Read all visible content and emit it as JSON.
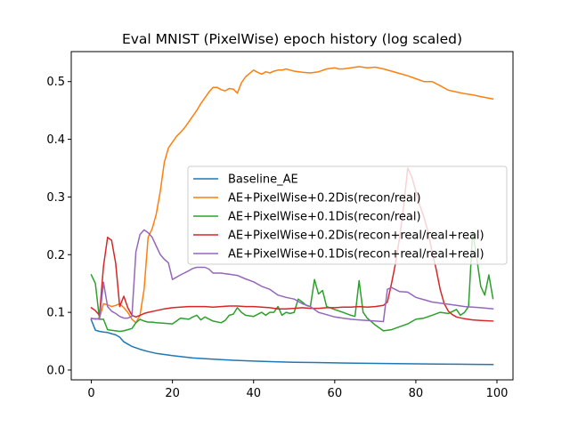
{
  "chart_data": {
    "type": "line",
    "title": "Eval MNIST (PixelWise) epoch history (log scaled)",
    "xlabel": "",
    "ylabel": "",
    "xlim": [
      -4.95,
      103.95
    ],
    "ylim": [
      -0.017,
      0.552
    ],
    "xticks": [
      0,
      20,
      40,
      60,
      80,
      100
    ],
    "yticks": [
      0.0,
      0.1,
      0.2,
      0.3,
      0.4,
      0.5
    ],
    "ytick_labels": [
      "0.0",
      "0.1",
      "0.2",
      "0.3",
      "0.4",
      "0.5"
    ],
    "legend_position": "center-right",
    "series": [
      {
        "name": "Baseline_AE",
        "color": "#1f77b4",
        "x": [
          0,
          1,
          2,
          3,
          4,
          5,
          6,
          7,
          8,
          9,
          10,
          12,
          14,
          16,
          18,
          20,
          25,
          30,
          35,
          40,
          45,
          50,
          55,
          60,
          65,
          70,
          75,
          80,
          85,
          90,
          95,
          99
        ],
        "y": [
          0.087,
          0.069,
          0.067,
          0.066,
          0.065,
          0.063,
          0.061,
          0.057,
          0.049,
          0.045,
          0.041,
          0.036,
          0.032,
          0.029,
          0.027,
          0.025,
          0.021,
          0.019,
          0.017,
          0.0155,
          0.0145,
          0.0135,
          0.013,
          0.0125,
          0.012,
          0.0115,
          0.011,
          0.0108,
          0.0105,
          0.0102,
          0.0099,
          0.0097
        ]
      },
      {
        "name": "AE+PixelWise+0.2Dis(recon/real)",
        "color": "#ff7f0e",
        "x": [
          0,
          1,
          2,
          3,
          4,
          5,
          6,
          7,
          8,
          9,
          10,
          11,
          12,
          13,
          14,
          15,
          16,
          17,
          18,
          19,
          20,
          21,
          22,
          23,
          24,
          25,
          26,
          27,
          28,
          29,
          30,
          31,
          32,
          33,
          34,
          35,
          36,
          37,
          38,
          39,
          40,
          41,
          42,
          43,
          44,
          45,
          46,
          47,
          48,
          49,
          50,
          52,
          54,
          56,
          58,
          60,
          61,
          62,
          64,
          66,
          68,
          70,
          72,
          74,
          76,
          78,
          80,
          82,
          84,
          86,
          88,
          90,
          92,
          94,
          96,
          99
        ],
        "y": [
          0.09,
          0.088,
          0.09,
          0.115,
          0.113,
          0.11,
          0.112,
          0.115,
          0.108,
          0.1,
          0.088,
          0.082,
          0.095,
          0.14,
          0.23,
          0.245,
          0.27,
          0.31,
          0.36,
          0.385,
          0.395,
          0.405,
          0.412,
          0.42,
          0.43,
          0.44,
          0.45,
          0.462,
          0.472,
          0.482,
          0.49,
          0.49,
          0.486,
          0.484,
          0.488,
          0.487,
          0.48,
          0.498,
          0.508,
          0.514,
          0.52,
          0.516,
          0.513,
          0.517,
          0.515,
          0.518,
          0.52,
          0.52,
          0.522,
          0.52,
          0.518,
          0.516,
          0.515,
          0.517,
          0.522,
          0.524,
          0.522,
          0.522,
          0.524,
          0.526,
          0.524,
          0.525,
          0.522,
          0.518,
          0.514,
          0.51,
          0.505,
          0.5,
          0.5,
          0.493,
          0.485,
          0.482,
          0.479,
          0.477,
          0.474,
          0.47
        ]
      },
      {
        "name": "AE+PixelWise+0.1Dis(recon/real)",
        "color": "#2ca02c",
        "x": [
          0,
          1,
          2,
          3,
          4,
          5,
          6,
          7,
          8,
          9,
          10,
          11,
          12,
          13,
          14,
          15,
          16,
          18,
          20,
          22,
          24,
          25,
          26,
          27,
          28,
          30,
          32,
          33,
          34,
          35,
          36,
          37,
          38,
          40,
          42,
          43,
          44,
          45,
          46,
          47,
          48,
          49,
          50,
          51,
          52,
          53,
          54,
          55,
          56,
          57,
          58,
          60,
          62,
          64,
          65,
          66,
          67,
          68,
          70,
          72,
          74,
          76,
          78,
          80,
          82,
          84,
          86,
          88,
          90,
          91,
          92,
          93,
          94,
          95,
          96,
          97,
          98,
          99
        ],
        "y": [
          0.165,
          0.15,
          0.088,
          0.088,
          0.07,
          0.069,
          0.068,
          0.067,
          0.068,
          0.07,
          0.072,
          0.082,
          0.088,
          0.085,
          0.083,
          0.083,
          0.082,
          0.081,
          0.08,
          0.09,
          0.088,
          0.092,
          0.095,
          0.087,
          0.092,
          0.085,
          0.082,
          0.086,
          0.095,
          0.097,
          0.108,
          0.1,
          0.095,
          0.093,
          0.1,
          0.095,
          0.1,
          0.1,
          0.11,
          0.095,
          0.1,
          0.098,
          0.1,
          0.123,
          0.118,
          0.112,
          0.11,
          0.157,
          0.132,
          0.138,
          0.11,
          0.105,
          0.1,
          0.095,
          0.093,
          0.155,
          0.1,
          0.09,
          0.078,
          0.068,
          0.07,
          0.075,
          0.08,
          0.088,
          0.09,
          0.095,
          0.1,
          0.098,
          0.105,
          0.095,
          0.1,
          0.11,
          0.24,
          0.195,
          0.145,
          0.13,
          0.165,
          0.124
        ]
      },
      {
        "name": "AE+PixelWise+0.2Dis(recon+real/real+real)",
        "color": "#d62728",
        "x": [
          0,
          1,
          2,
          3,
          4,
          5,
          6,
          7,
          8,
          9,
          10,
          11,
          12,
          13,
          14,
          16,
          18,
          20,
          22,
          24,
          26,
          28,
          30,
          32,
          34,
          36,
          38,
          40,
          42,
          44,
          46,
          48,
          50,
          52,
          54,
          56,
          58,
          60,
          62,
          64,
          66,
          68,
          70,
          72,
          73,
          74,
          75,
          76,
          77,
          78,
          79,
          80,
          81,
          82,
          83,
          84,
          85,
          86,
          87,
          88,
          89,
          90,
          92,
          94,
          96,
          99
        ],
        "y": [
          0.108,
          0.103,
          0.095,
          0.18,
          0.23,
          0.225,
          0.185,
          0.11,
          0.128,
          0.108,
          0.095,
          0.092,
          0.095,
          0.098,
          0.1,
          0.103,
          0.106,
          0.108,
          0.109,
          0.11,
          0.11,
          0.11,
          0.109,
          0.11,
          0.111,
          0.111,
          0.11,
          0.11,
          0.109,
          0.108,
          0.106,
          0.106,
          0.107,
          0.108,
          0.107,
          0.107,
          0.108,
          0.108,
          0.109,
          0.109,
          0.11,
          0.109,
          0.11,
          0.112,
          0.118,
          0.15,
          0.185,
          0.23,
          0.285,
          0.35,
          0.335,
          0.31,
          0.285,
          0.265,
          0.24,
          0.205,
          0.175,
          0.14,
          0.115,
          0.102,
          0.096,
          0.092,
          0.089,
          0.087,
          0.086,
          0.085
        ]
      },
      {
        "name": "AE+PixelWise+0.1Dis(recon+real/real+real)",
        "color": "#9467bd",
        "x": [
          0,
          1,
          2,
          3,
          4,
          5,
          6,
          7,
          8,
          9,
          10,
          11,
          12,
          13,
          14,
          15,
          16,
          17,
          18,
          19,
          20,
          22,
          24,
          25,
          26,
          28,
          29,
          30,
          32,
          34,
          36,
          38,
          40,
          42,
          44,
          46,
          48,
          50,
          52,
          54,
          56,
          58,
          60,
          62,
          64,
          66,
          68,
          70,
          72,
          73,
          74,
          76,
          78,
          80,
          82,
          84,
          86,
          88,
          90,
          92,
          94,
          96,
          99
        ],
        "y": [
          0.089,
          0.089,
          0.088,
          0.152,
          0.11,
          0.102,
          0.098,
          0.093,
          0.09,
          0.09,
          0.093,
          0.205,
          0.235,
          0.243,
          0.238,
          0.23,
          0.215,
          0.2,
          0.192,
          0.186,
          0.157,
          0.165,
          0.172,
          0.176,
          0.178,
          0.178,
          0.175,
          0.168,
          0.168,
          0.166,
          0.164,
          0.158,
          0.153,
          0.145,
          0.14,
          0.13,
          0.126,
          0.123,
          0.115,
          0.11,
          0.1,
          0.096,
          0.092,
          0.09,
          0.088,
          0.087,
          0.086,
          0.085,
          0.084,
          0.14,
          0.143,
          0.136,
          0.135,
          0.126,
          0.122,
          0.118,
          0.116,
          0.114,
          0.112,
          0.11,
          0.109,
          0.108,
          0.106
        ]
      }
    ]
  }
}
